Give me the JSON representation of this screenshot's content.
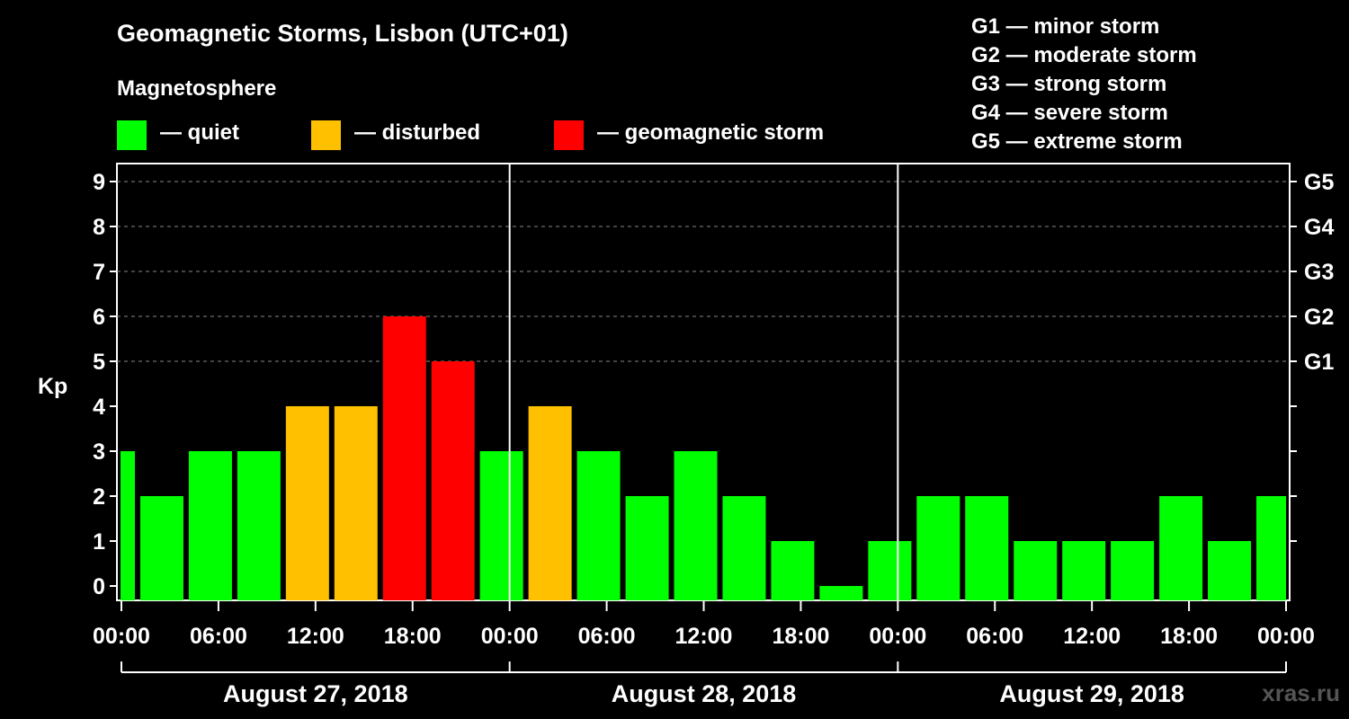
{
  "title": "Geomagnetic Storms, Lisbon (UTC+01)",
  "subtitle": "Magnetosphere",
  "legend": [
    {
      "label": "— quiet",
      "color": "#00ff00"
    },
    {
      "label": "— disturbed",
      "color": "#ffc000"
    },
    {
      "label": "— geomagnetic storm",
      "color": "#ff0000"
    }
  ],
  "storm_scale": [
    "G1 — minor storm",
    "G2 — moderate storm",
    "G3 — strong storm",
    "G4 — severe storm",
    "G5 — extreme storm"
  ],
  "watermark": "xras.ru",
  "chart_data": {
    "type": "bar",
    "ylabel": "Kp",
    "ylim": [
      0,
      9
    ],
    "yticks": [
      "0",
      "1",
      "2",
      "3",
      "4",
      "5",
      "6",
      "7",
      "8",
      "9"
    ],
    "right_tick_labels": [
      {
        "value": 5,
        "label": "G1"
      },
      {
        "value": 6,
        "label": "G2"
      },
      {
        "value": 7,
        "label": "G3"
      },
      {
        "value": 8,
        "label": "G4"
      },
      {
        "value": 9,
        "label": "G5"
      }
    ],
    "xtick_labels": [
      "00:00",
      "06:00",
      "12:00",
      "18:00",
      "00:00",
      "06:00",
      "12:00",
      "18:00",
      "00:00",
      "06:00",
      "12:00",
      "18:00",
      "00:00"
    ],
    "days": [
      "August 27, 2018",
      "August 28, 2018",
      "August 29, 2018"
    ],
    "interval_hours": 3,
    "start_hour": -2,
    "values": [
      3,
      2,
      3,
      3,
      4,
      4,
      6,
      5,
      3,
      4,
      3,
      2,
      3,
      2,
      1,
      0,
      1,
      2,
      2,
      1,
      1,
      1,
      2,
      1,
      2
    ],
    "colors": {
      "quiet": "#00ff00",
      "disturbed": "#ffc000",
      "storm": "#ff0000"
    },
    "grid": "dashed horizontal at 5-9"
  }
}
